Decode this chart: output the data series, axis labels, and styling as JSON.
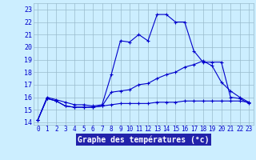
{
  "title": "Graphe des températures (°c)",
  "background_color": "#cceeff",
  "line_color": "#0000cc",
  "grid_color": "#99bbcc",
  "xlabel_bg": "#2222aa",
  "xlabel_fg": "#ffffff",
  "x_labels": [
    "0",
    "1",
    "2",
    "3",
    "4",
    "5",
    "6",
    "7",
    "8",
    "9",
    "10",
    "11",
    "12",
    "13",
    "14",
    "15",
    "16",
    "17",
    "18",
    "19",
    "20",
    "21",
    "22",
    "23"
  ],
  "ylim": [
    13.8,
    23.5
  ],
  "yticks": [
    14,
    15,
    16,
    17,
    18,
    19,
    20,
    21,
    22,
    23
  ],
  "line1_y": [
    14.2,
    16.0,
    15.8,
    15.6,
    15.4,
    15.4,
    15.3,
    15.4,
    17.8,
    20.5,
    20.4,
    21.0,
    20.5,
    22.6,
    22.6,
    22.0,
    22.0,
    19.7,
    18.8,
    18.8,
    18.8,
    16.0,
    15.9,
    15.5
  ],
  "line2_y": [
    14.2,
    15.9,
    15.7,
    15.3,
    15.2,
    15.2,
    15.2,
    15.3,
    16.4,
    16.5,
    16.6,
    17.0,
    17.1,
    17.5,
    17.8,
    18.0,
    18.4,
    18.6,
    18.9,
    18.5,
    17.2,
    16.5,
    16.0,
    15.6
  ],
  "line3_y": [
    14.2,
    15.9,
    15.7,
    15.3,
    15.2,
    15.2,
    15.2,
    15.3,
    15.4,
    15.5,
    15.5,
    15.5,
    15.5,
    15.6,
    15.6,
    15.6,
    15.7,
    15.7,
    15.7,
    15.7,
    15.7,
    15.7,
    15.7,
    15.6
  ]
}
